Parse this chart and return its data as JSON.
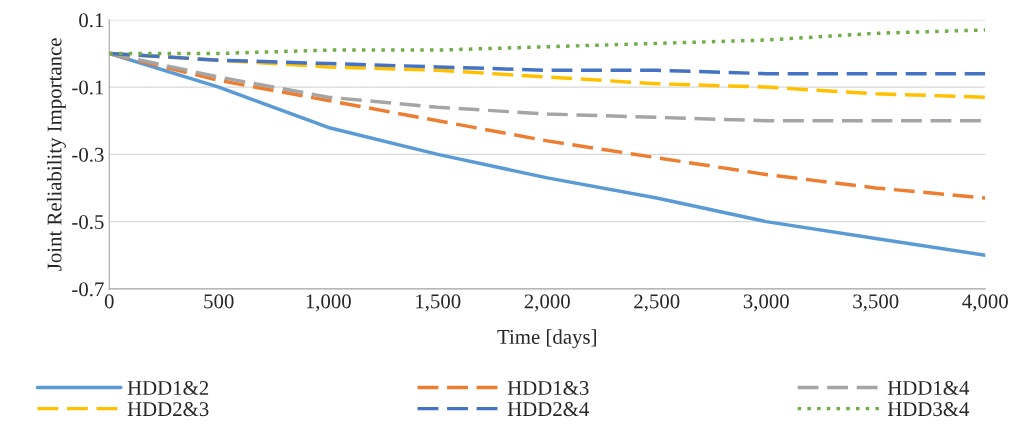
{
  "chart_data": {
    "type": "line",
    "xlabel": "Time [days]",
    "ylabel": "Joint Reliability Importance",
    "x": [
      0,
      500,
      1000,
      1500,
      2000,
      2500,
      3000,
      3500,
      4000
    ],
    "series": [
      {
        "name": "HDD1&2",
        "color": "#5b9bd5",
        "line_style": "solid",
        "values": [
          0,
          -0.1,
          -0.22,
          -0.3,
          -0.37,
          -0.43,
          -0.5,
          -0.55,
          -0.6
        ]
      },
      {
        "name": "HDD1&3",
        "color": "#ed7d31",
        "line_style": "dashed",
        "values": [
          0,
          -0.08,
          -0.14,
          -0.2,
          -0.26,
          -0.31,
          -0.36,
          -0.4,
          -0.43
        ]
      },
      {
        "name": "HDD1&4",
        "color": "#a5a5a5",
        "line_style": "dashed",
        "values": [
          0,
          -0.07,
          -0.13,
          -0.16,
          -0.18,
          -0.19,
          -0.2,
          -0.2,
          -0.2
        ]
      },
      {
        "name": "HDD2&3",
        "color": "#ffc000",
        "line_style": "dashed",
        "values": [
          0,
          -0.02,
          -0.04,
          -0.05,
          -0.07,
          -0.09,
          -0.1,
          -0.12,
          -0.13
        ]
      },
      {
        "name": "HDD2&4",
        "color": "#4472c4",
        "line_style": "dashed",
        "values": [
          0,
          -0.02,
          -0.03,
          -0.04,
          -0.05,
          -0.05,
          -0.06,
          -0.06,
          -0.06
        ]
      },
      {
        "name": "HDD3&4",
        "color": "#70ad47",
        "line_style": "dotted",
        "values": [
          0,
          0,
          0.01,
          0.01,
          0.02,
          0.03,
          0.04,
          0.06,
          0.07
        ]
      }
    ],
    "xlim": [
      0,
      4000
    ],
    "xticks": [
      0,
      500,
      {
        "value": 1000,
        "label": "1,000"
      },
      {
        "value": 1500,
        "label": "1,500"
      },
      {
        "value": 2000,
        "label": "2,000"
      },
      {
        "value": 2500,
        "label": "2,500"
      },
      {
        "value": 3000,
        "label": "3,000"
      },
      {
        "value": 3500,
        "label": "3,500"
      },
      {
        "value": 4000,
        "label": "4,000"
      }
    ],
    "ylim": [
      -0.7,
      0.1
    ],
    "yticks": [
      -0.7,
      -0.5,
      -0.3,
      -0.1,
      0.1
    ],
    "grid": "y",
    "legend": "bottom",
    "marker": "none"
  }
}
